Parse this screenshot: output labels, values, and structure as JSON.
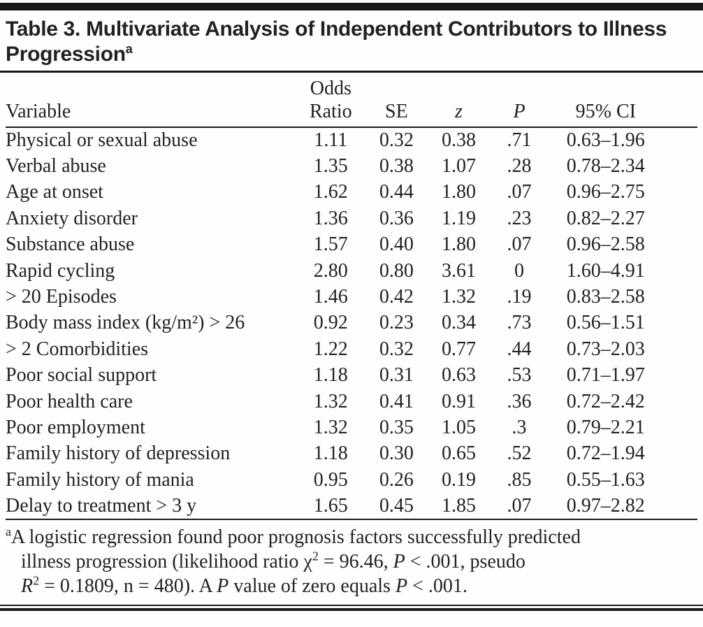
{
  "colors": {
    "text": "#241f21",
    "rule": "#1a1a1a",
    "background": "#fefefe"
  },
  "table": {
    "title": "Table 3. Multivariate Analysis of Independent Contributors to Illness Progression",
    "title_footnote_marker": "a",
    "columns": [
      {
        "top": "",
        "label": "Variable",
        "align": "left",
        "italic": false
      },
      {
        "top": "Odds",
        "label": "Ratio",
        "align": "center",
        "italic": false
      },
      {
        "top": "",
        "label": "SE",
        "align": "center",
        "italic": false
      },
      {
        "top": "",
        "label": "z",
        "align": "center",
        "italic": true
      },
      {
        "top": "",
        "label": "P",
        "align": "center",
        "italic": true
      },
      {
        "top": "",
        "label": "95% CI",
        "align": "center",
        "italic": false
      }
    ],
    "rows": [
      {
        "variable": "Physical or sexual abuse",
        "odds_ratio": "1.11",
        "se": "0.32",
        "z": "0.38",
        "p": ".71",
        "ci": "0.63–1.96"
      },
      {
        "variable": "Verbal abuse",
        "odds_ratio": "1.35",
        "se": "0.38",
        "z": "1.07",
        "p": ".28",
        "ci": "0.78–2.34"
      },
      {
        "variable": "Age at onset",
        "odds_ratio": "1.62",
        "se": "0.44",
        "z": "1.80",
        "p": ".07",
        "ci": "0.96–2.75"
      },
      {
        "variable": "Anxiety disorder",
        "odds_ratio": "1.36",
        "se": "0.36",
        "z": "1.19",
        "p": ".23",
        "ci": "0.82–2.27"
      },
      {
        "variable": "Substance abuse",
        "odds_ratio": "1.57",
        "se": "0.40",
        "z": "1.80",
        "p": ".07",
        "ci": "0.96–2.58"
      },
      {
        "variable": "Rapid cycling",
        "odds_ratio": "2.80",
        "se": "0.80",
        "z": "3.61",
        "p": "0",
        "ci": "1.60–4.91"
      },
      {
        "variable": "> 20 Episodes",
        "odds_ratio": "1.46",
        "se": "0.42",
        "z": "1.32",
        "p": ".19",
        "ci": "0.83–2.58"
      },
      {
        "variable": "Body mass index (kg/m²) > 26",
        "odds_ratio": "0.92",
        "se": "0.23",
        "z": "0.34",
        "p": ".73",
        "ci": "0.56–1.51"
      },
      {
        "variable": "> 2 Comorbidities",
        "odds_ratio": "1.22",
        "se": "0.32",
        "z": "0.77",
        "p": ".44",
        "ci": "0.73–2.03"
      },
      {
        "variable": "Poor social support",
        "odds_ratio": "1.18",
        "se": "0.31",
        "z": "0.63",
        "p": ".53",
        "ci": "0.71–1.97"
      },
      {
        "variable": "Poor health care",
        "odds_ratio": "1.32",
        "se": "0.41",
        "z": "0.91",
        "p": ".36",
        "ci": "0.72–2.42"
      },
      {
        "variable": "Poor employment",
        "odds_ratio": "1.32",
        "se": "0.35",
        "z": "1.05",
        "p": ".3",
        "ci": "0.79–2.21"
      },
      {
        "variable": "Family history of depression",
        "odds_ratio": "1.18",
        "se": "0.30",
        "z": "0.65",
        "p": ".52",
        "ci": "0.72–1.94"
      },
      {
        "variable": "Family history of mania",
        "odds_ratio": "0.95",
        "se": "0.26",
        "z": "0.19",
        "p": ".85",
        "ci": "0.55–1.63"
      },
      {
        "variable": "Delay to treatment > 3 y",
        "odds_ratio": "1.65",
        "se": "0.45",
        "z": "1.85",
        "p": ".07",
        "ci": "0.97–2.82"
      }
    ],
    "footnote_lines": [
      [
        {
          "text": "a",
          "sup": true
        },
        {
          "text": "A logistic regression found poor prognosis factors successfully predicted"
        }
      ],
      [
        {
          "text": "illness progression (likelihood ratio χ"
        },
        {
          "text": "2",
          "sup": true
        },
        {
          "text": " = 96.46, "
        },
        {
          "text": "P",
          "italic": true
        },
        {
          "text": " < .001, pseudo"
        }
      ],
      [
        {
          "text": "R",
          "italic": true
        },
        {
          "text": "2",
          "sup": true
        },
        {
          "text": " = 0.1809, n = 480). A "
        },
        {
          "text": "P",
          "italic": true
        },
        {
          "text": " value of zero equals "
        },
        {
          "text": "P",
          "italic": true
        },
        {
          "text": " < .001."
        }
      ]
    ]
  }
}
